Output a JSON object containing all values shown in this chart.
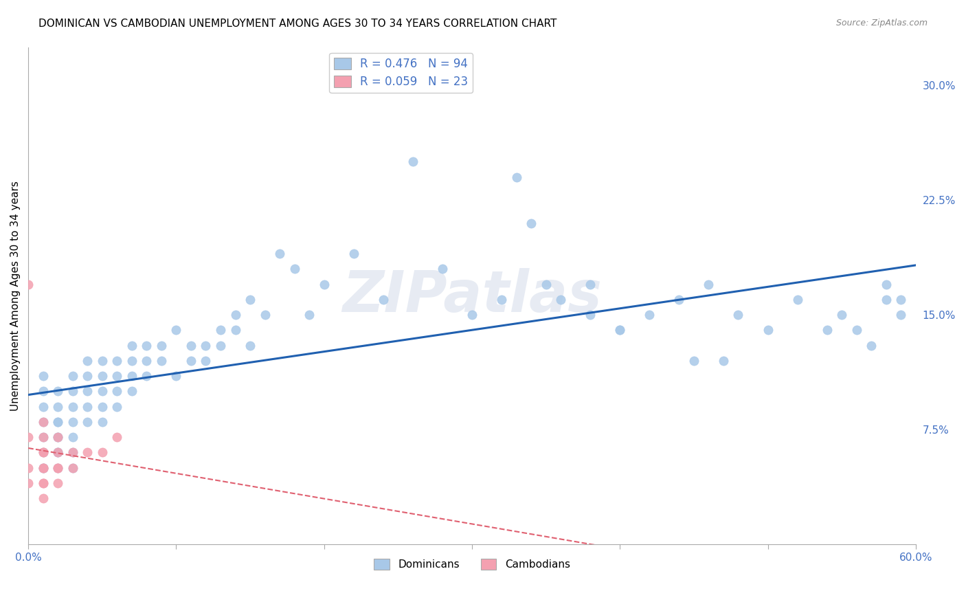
{
  "title": "DOMINICAN VS CAMBODIAN UNEMPLOYMENT AMONG AGES 30 TO 34 YEARS CORRELATION CHART",
  "source": "Source: ZipAtlas.com",
  "ylabel": "Unemployment Among Ages 30 to 34 years",
  "xlim": [
    0.0,
    0.6
  ],
  "ylim": [
    0.0,
    0.325
  ],
  "yticks_right": [
    0.075,
    0.15,
    0.225,
    0.3
  ],
  "ytick_right_labels": [
    "7.5%",
    "15.0%",
    "22.5%",
    "30.0%"
  ],
  "dominican_R": 0.476,
  "dominican_N": 94,
  "cambodian_R": 0.059,
  "cambodian_N": 23,
  "dominican_color": "#a8c8e8",
  "cambodian_color": "#f4a0b0",
  "dominican_line_color": "#2060b0",
  "cambodian_line_color": "#e06070",
  "watermark": "ZIPatlas",
  "background_color": "#ffffff",
  "grid_color": "#cccccc",
  "dom_x": [
    0.01,
    0.01,
    0.01,
    0.01,
    0.01,
    0.01,
    0.01,
    0.01,
    0.02,
    0.02,
    0.02,
    0.02,
    0.02,
    0.02,
    0.02,
    0.02,
    0.02,
    0.03,
    0.03,
    0.03,
    0.03,
    0.03,
    0.03,
    0.03,
    0.04,
    0.04,
    0.04,
    0.04,
    0.04,
    0.05,
    0.05,
    0.05,
    0.05,
    0.05,
    0.06,
    0.06,
    0.06,
    0.06,
    0.07,
    0.07,
    0.07,
    0.07,
    0.08,
    0.08,
    0.08,
    0.09,
    0.09,
    0.1,
    0.1,
    0.11,
    0.11,
    0.12,
    0.12,
    0.13,
    0.13,
    0.14,
    0.14,
    0.15,
    0.15,
    0.16,
    0.17,
    0.18,
    0.19,
    0.2,
    0.22,
    0.24,
    0.26,
    0.28,
    0.3,
    0.32,
    0.33,
    0.34,
    0.35,
    0.36,
    0.38,
    0.4,
    0.42,
    0.44,
    0.46,
    0.48,
    0.5,
    0.52,
    0.54,
    0.55,
    0.56,
    0.57,
    0.58,
    0.58,
    0.59,
    0.59,
    0.38,
    0.4,
    0.45,
    0.47
  ],
  "dom_y": [
    0.05,
    0.06,
    0.07,
    0.08,
    0.09,
    0.1,
    0.11,
    0.05,
    0.06,
    0.07,
    0.08,
    0.09,
    0.1,
    0.05,
    0.06,
    0.07,
    0.08,
    0.07,
    0.08,
    0.09,
    0.1,
    0.11,
    0.06,
    0.05,
    0.08,
    0.09,
    0.1,
    0.11,
    0.12,
    0.09,
    0.1,
    0.11,
    0.12,
    0.08,
    0.1,
    0.11,
    0.12,
    0.09,
    0.11,
    0.12,
    0.13,
    0.1,
    0.12,
    0.13,
    0.11,
    0.12,
    0.13,
    0.11,
    0.14,
    0.12,
    0.13,
    0.13,
    0.12,
    0.14,
    0.13,
    0.14,
    0.15,
    0.13,
    0.16,
    0.15,
    0.19,
    0.18,
    0.15,
    0.17,
    0.19,
    0.16,
    0.25,
    0.18,
    0.15,
    0.16,
    0.24,
    0.21,
    0.17,
    0.16,
    0.17,
    0.14,
    0.15,
    0.16,
    0.17,
    0.15,
    0.14,
    0.16,
    0.14,
    0.15,
    0.14,
    0.13,
    0.17,
    0.16,
    0.15,
    0.16,
    0.15,
    0.14,
    0.12,
    0.12
  ],
  "cam_x": [
    0.0,
    0.0,
    0.0,
    0.0,
    0.01,
    0.01,
    0.01,
    0.01,
    0.01,
    0.01,
    0.01,
    0.01,
    0.01,
    0.02,
    0.02,
    0.02,
    0.02,
    0.02,
    0.03,
    0.03,
    0.04,
    0.05,
    0.06
  ],
  "cam_y": [
    0.17,
    0.07,
    0.05,
    0.04,
    0.08,
    0.07,
    0.06,
    0.05,
    0.04,
    0.04,
    0.05,
    0.06,
    0.03,
    0.06,
    0.05,
    0.07,
    0.04,
    0.05,
    0.06,
    0.05,
    0.06,
    0.06,
    0.07
  ]
}
